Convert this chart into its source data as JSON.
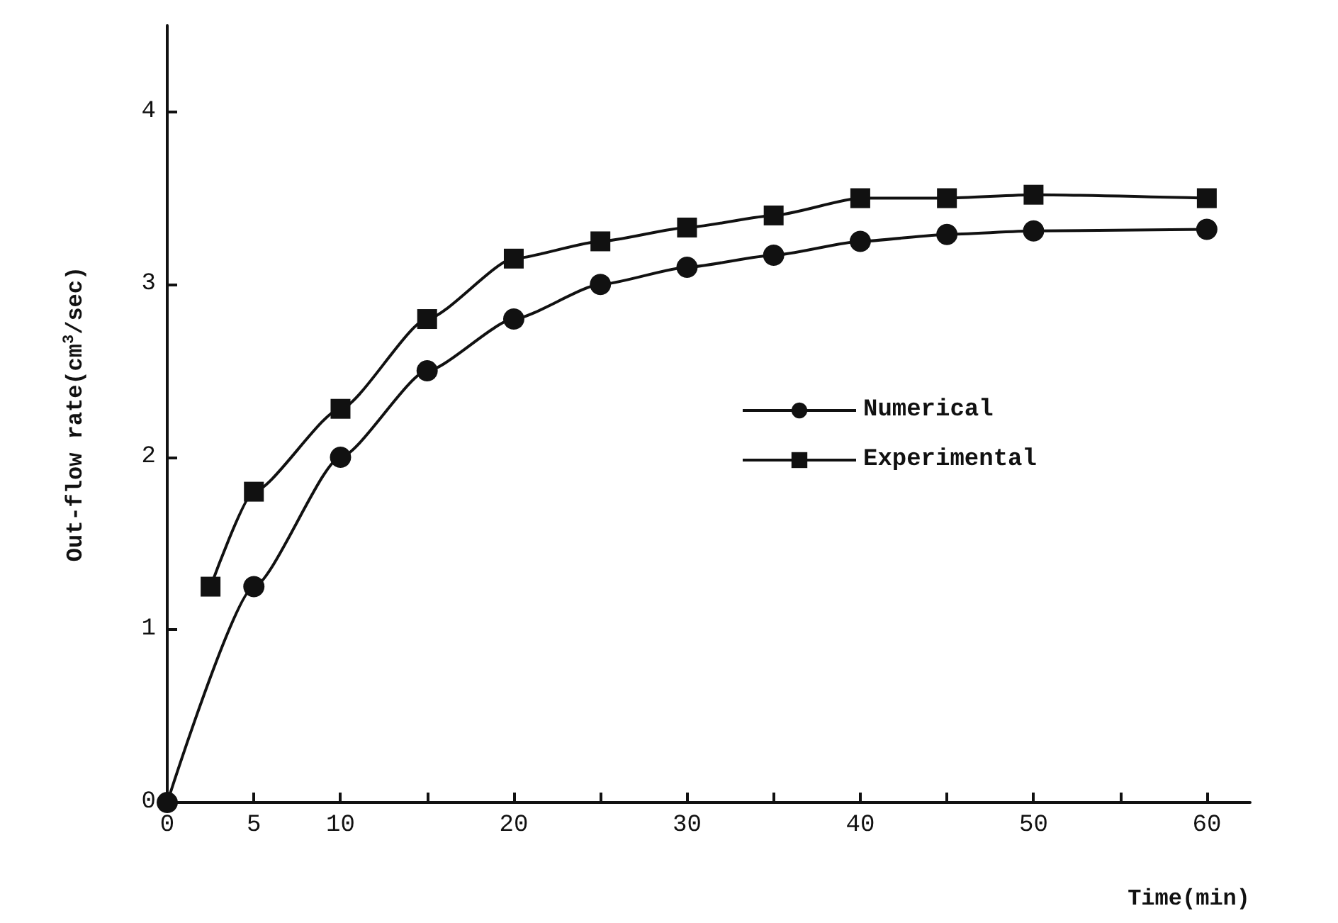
{
  "chart_data": {
    "type": "line",
    "xlabel": "Time(min)",
    "ylabel": "Out-flow rate(cm$^{3}$/sec)",
    "xlim": [
      0,
      62.5
    ],
    "ylim": [
      0,
      4.5
    ],
    "xticks": [
      0,
      5,
      10,
      {
        "value": 15,
        "label": null
      },
      20,
      {
        "value": 25,
        "label": null
      },
      30,
      {
        "value": 35,
        "label": null
      },
      40,
      {
        "value": 45,
        "label": null
      },
      50,
      {
        "value": 55,
        "label": null
      },
      60
    ],
    "yticks": [
      0,
      1,
      2,
      3,
      4
    ],
    "grid": false,
    "legend": "right",
    "series": [
      {
        "name": "Numerical",
        "color": "#111111",
        "marker": "circle",
        "x": [
          0,
          5,
          10,
          15,
          20,
          25,
          30,
          35,
          40,
          45,
          50,
          60
        ],
        "values": [
          0,
          1.25,
          2.0,
          2.5,
          2.8,
          3.0,
          3.1,
          3.17,
          3.25,
          3.29,
          3.31,
          3.32
        ]
      },
      {
        "name": "Experimental",
        "color": "#111111",
        "marker": "square",
        "x": [
          2.5,
          5,
          10,
          15,
          20,
          25,
          30,
          35,
          40,
          45,
          50,
          60
        ],
        "values": [
          1.25,
          1.8,
          2.28,
          2.8,
          3.15,
          3.25,
          3.33,
          3.4,
          3.5,
          3.5,
          3.52,
          3.5
        ]
      }
    ]
  }
}
